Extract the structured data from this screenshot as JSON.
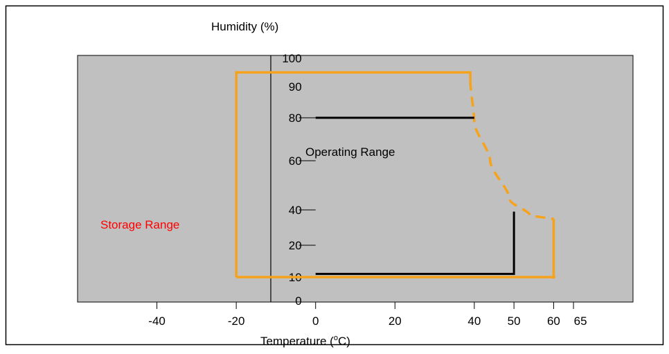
{
  "chart_data": {
    "type": "line",
    "ylabel": "Humidity (%)",
    "xlabel_text": "Temperature (",
    "xlabel_sup": "o",
    "xlabel_tail": "C)",
    "x_ticks": [
      -40,
      -20,
      0,
      20,
      40,
      50,
      60,
      65
    ],
    "x_tick_labels": [
      "-40",
      "-20",
      "0",
      "20",
      "40",
      "50",
      "60",
      "65"
    ],
    "y_ticks": [
      0,
      10,
      20,
      40,
      60,
      80,
      90,
      100
    ],
    "y_tick_labels": [
      "0",
      "10",
      "20",
      "40",
      "60",
      "80",
      "90",
      "100"
    ],
    "xlim": [
      -60,
      80
    ],
    "annotations": {
      "operating": "Operating Range",
      "storage": "Storage Range"
    },
    "colors": {
      "plot_bg": "#c0c0c0",
      "storage": "#f7a21b",
      "operating": "#000000",
      "storage_label": "#ff0000"
    },
    "series": [
      {
        "points": [
          [
            -20,
            10
          ],
          [
            -20,
            95
          ],
          [
            39,
            95
          ],
          [
            39,
            92
          ]
        ]
      },
      {
        "points": [
          [
            39,
            92
          ],
          [
            40,
            78
          ],
          [
            44,
            60
          ],
          [
            49,
            44
          ],
          [
            54,
            37
          ],
          [
            59,
            35
          ],
          [
            60,
            35
          ]
        ]
      },
      {
        "points": [
          [
            60,
            35
          ],
          [
            60,
            10
          ],
          [
            -20,
            10
          ]
        ]
      },
      {
        "points": [
          [
            0,
            80
          ],
          [
            40,
            80
          ]
        ]
      },
      {
        "points": [
          [
            0,
            11
          ],
          [
            50,
            11
          ],
          [
            50,
            39
          ]
        ]
      }
    ]
  }
}
